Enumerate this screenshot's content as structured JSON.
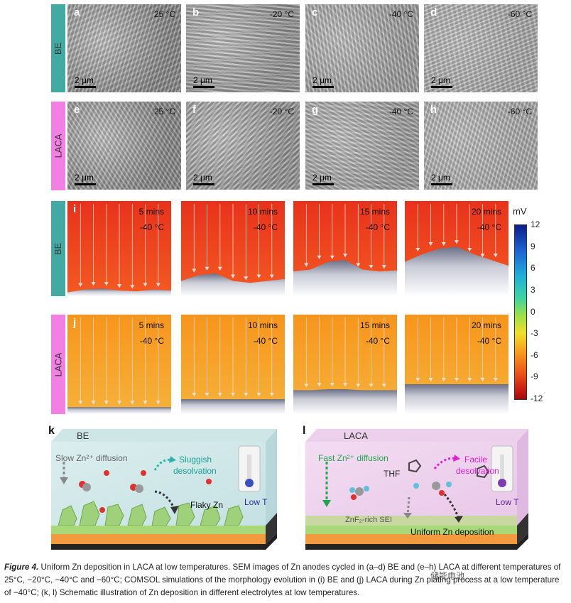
{
  "side_labels": {
    "be": "BE",
    "laca": "LACA"
  },
  "sem_panels": [
    {
      "letter": "a",
      "temp": "25 °C",
      "scale": "2 μm"
    },
    {
      "letter": "b",
      "temp": "-20 °C",
      "scale": "2 μm"
    },
    {
      "letter": "c",
      "temp": "-40 °C",
      "scale": "2 μm"
    },
    {
      "letter": "d",
      "temp": "-60 °C",
      "scale": "2 μm"
    },
    {
      "letter": "e",
      "temp": "25 °C",
      "scale": "2 μm"
    },
    {
      "letter": "f",
      "temp": "-20 °C",
      "scale": "2 μm"
    },
    {
      "letter": "g",
      "temp": "-40 °C",
      "scale": "2 μm"
    },
    {
      "letter": "h",
      "temp": "-60 °C",
      "scale": "2 μm"
    }
  ],
  "sim_panels": [
    {
      "letter": "i",
      "time": "5 mins",
      "temp": "-40 °C"
    },
    {
      "letter": "",
      "time": "10 mins",
      "temp": "-40 °C"
    },
    {
      "letter": "",
      "time": "15 mins",
      "temp": "-40 °C"
    },
    {
      "letter": "",
      "time": "20 mins",
      "temp": "-40 °C"
    },
    {
      "letter": "j",
      "time": "5 mins",
      "temp": "-40 °C"
    },
    {
      "letter": "",
      "time": "10 mins",
      "temp": "-40 °C"
    },
    {
      "letter": "",
      "time": "15 mins",
      "temp": "-40 °C"
    },
    {
      "letter": "",
      "time": "20 mins",
      "temp": "-40 °C"
    }
  ],
  "colorbar": {
    "unit": "mV",
    "ticks": [
      "12",
      "9",
      "6",
      "3",
      "0",
      "-3",
      "-6",
      "-9",
      "-12"
    ]
  },
  "scheme_k": {
    "letter": "k",
    "title": "BE",
    "diffusion": "Slow Zn²⁺ diffusion",
    "desolv_1": "Sluggish",
    "desolv_2": "desolvation",
    "product": "Flaky Zn",
    "temp": "Low T"
  },
  "scheme_l": {
    "letter": "l",
    "title": "LACA",
    "diffusion": "Fast Zn²⁺ diffusion",
    "solvent": "THF",
    "desolv_1": "Facile",
    "desolv_2": "desolvation",
    "sei": "ZnF₂-rich SEI",
    "product": "Uniform Zn deposition",
    "temp": "Low T"
  },
  "caption": {
    "fig": "Figure 4.",
    "text": " Uniform Zn deposition in LACA at low temperatures. SEM images of Zn anodes cycled in (a–d) BE and (e–h) LACA at different temperatures of 25°C, −20°C, −40°C and −60°C; COMSOL simulations of the morphology evolution in (i) BE and (j) LACA during Zn plating process at a low temperature of −40°C; (k, l) Schematic illustration of Zn deposition in different electrolytes at low temperatures."
  },
  "watermark": "储能电池"
}
